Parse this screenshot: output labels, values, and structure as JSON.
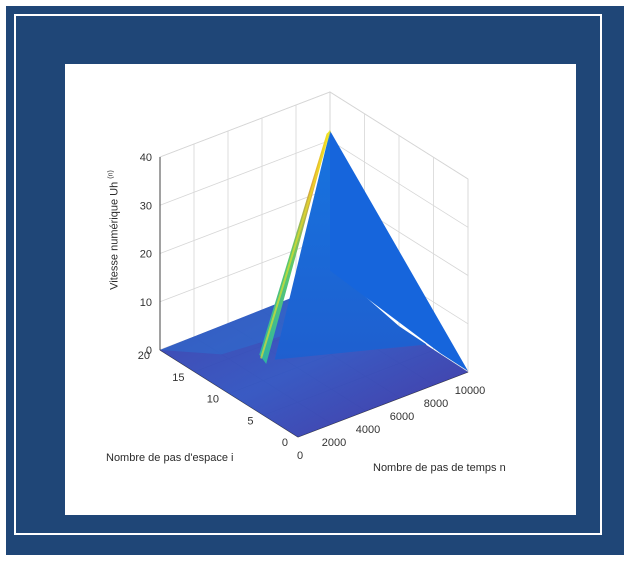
{
  "chart_data": {
    "type": "surface3d",
    "zlabel_main": "Vitesse numérique Uh",
    "zlabel_sup": "(n)",
    "ilabel": "Nombre de pas d'espace i",
    "nlabel": "Nombre de pas de temps n",
    "z_ticks": [
      "0",
      "10",
      "20",
      "30",
      "40"
    ],
    "i_ticks": [
      "0",
      "5",
      "10",
      "15",
      "20"
    ],
    "n_ticks": [
      "0",
      "2000",
      "4000",
      "6000",
      "8000",
      "10000"
    ],
    "zlim": [
      0,
      40
    ],
    "ilim": [
      0,
      20
    ],
    "nlim": [
      0,
      10000
    ],
    "peak": {
      "i": 20,
      "n": 10000,
      "z": 32
    },
    "colormap": "parula",
    "grid": true
  },
  "colors": {
    "frame": "#1f4677",
    "surface_low": "#3e2f9e",
    "surface_mid": "#1f6bd9",
    "surface_edge": "#2bb3a6",
    "surface_high": "#f2e620"
  }
}
